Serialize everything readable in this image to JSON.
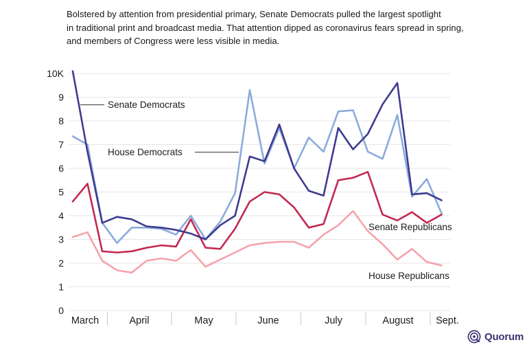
{
  "title": {
    "line1": "Bolstered by attention from presidential primary, Senate Democrats pulled the largest spotlight",
    "line2": "in traditional print and broadcast media. That attention dipped as coronavirus fears spread in spring,",
    "line3": "and members of Congress were less visible in media."
  },
  "chart_data": {
    "type": "line",
    "x_note": "weekly data points, mid-March through early September",
    "months": [
      "March",
      "April",
      "May",
      "June",
      "July",
      "August",
      "Sept."
    ],
    "y_ticks": [
      "0",
      "1",
      "2",
      "3",
      "4",
      "5",
      "6",
      "7",
      "8",
      "9",
      "10K"
    ],
    "ylim": [
      0,
      10.5
    ],
    "grid": "horizontal",
    "legend_position": "inline-annotations",
    "series": [
      {
        "name": "House Republicans",
        "color": "#f5a3ab",
        "values": [
          3.1,
          3.3,
          2.1,
          1.7,
          1.6,
          2.1,
          2.2,
          2.1,
          2.55,
          1.85,
          2.15,
          2.45,
          2.75,
          2.85,
          2.9,
          2.9,
          2.65,
          3.2,
          3.6,
          4.2,
          3.35,
          2.8,
          2.15,
          2.6,
          2.05,
          1.9
        ]
      },
      {
        "name": "House Democrats",
        "color": "#8aabdb",
        "values": [
          7.35,
          7.0,
          3.7,
          2.85,
          3.5,
          3.5,
          3.45,
          3.2,
          4.0,
          3.0,
          3.75,
          4.95,
          9.3,
          6.2,
          7.7,
          6.0,
          7.3,
          6.7,
          8.4,
          8.45,
          6.7,
          6.4,
          8.25,
          4.8,
          5.55,
          4.1
        ]
      },
      {
        "name": "Senate Republicans",
        "color": "#c22950",
        "values": [
          4.6,
          5.35,
          2.5,
          2.45,
          2.5,
          2.65,
          2.75,
          2.7,
          3.85,
          2.65,
          2.6,
          3.45,
          4.6,
          5.0,
          4.9,
          4.35,
          3.5,
          3.65,
          5.5,
          5.6,
          5.85,
          4.05,
          3.8,
          4.15,
          3.7,
          4.05
        ]
      },
      {
        "name": "Senate Democrats",
        "color": "#3e3b90",
        "values": [
          10.1,
          6.7,
          3.7,
          3.95,
          3.85,
          3.55,
          3.5,
          3.4,
          3.25,
          3.0,
          3.6,
          4.0,
          6.5,
          6.3,
          7.85,
          6.0,
          5.05,
          4.85,
          7.7,
          6.8,
          7.45,
          8.7,
          9.6,
          4.9,
          4.95,
          4.65
        ]
      }
    ],
    "annotations": [
      {
        "text": "Senate Democrats"
      },
      {
        "text": "House Democrats"
      },
      {
        "text": "Senate Republicans"
      },
      {
        "text": "House Republicans"
      }
    ],
    "colors": {
      "gridline": "#e6e6e6",
      "axis_tick": "#c9c9c9",
      "text": "#1b1b1b",
      "callout_line": "#555555"
    }
  },
  "logo": {
    "text": "Quorum",
    "color": "#3b3472"
  }
}
